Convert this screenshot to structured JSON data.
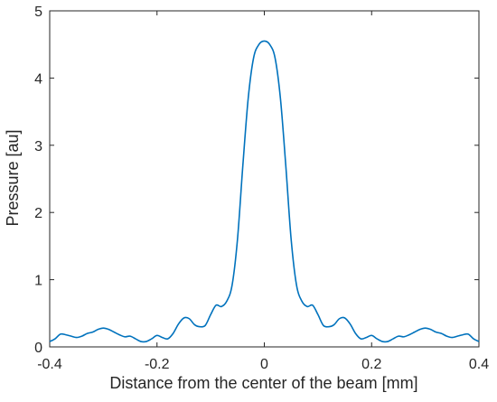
{
  "chart_data": {
    "type": "line",
    "title": "",
    "xlabel": "Distance from the center of the beam [mm]",
    "ylabel": "Pressure [au]",
    "xlim": [
      -0.4,
      0.4
    ],
    "ylim": [
      0,
      5
    ],
    "xticks": [
      -0.4,
      -0.2,
      0,
      0.2,
      0.4
    ],
    "xtick_labels": [
      "-0.4",
      "-0.2",
      "0",
      "0.2",
      "0.4"
    ],
    "yticks": [
      0,
      1,
      2,
      3,
      4,
      5
    ],
    "ytick_labels": [
      "0",
      "1",
      "2",
      "3",
      "4",
      "5"
    ],
    "grid": false,
    "box": true,
    "series": [
      {
        "color": "#0072BD",
        "x": [
          -0.4,
          -0.39,
          -0.38,
          -0.37,
          -0.36,
          -0.35,
          -0.34,
          -0.33,
          -0.32,
          -0.31,
          -0.3,
          -0.29,
          -0.28,
          -0.27,
          -0.26,
          -0.25,
          -0.24,
          -0.23,
          -0.22,
          -0.21,
          -0.2,
          -0.19,
          -0.18,
          -0.17,
          -0.16,
          -0.15,
          -0.14,
          -0.13,
          -0.12,
          -0.11,
          -0.1,
          -0.09,
          -0.08,
          -0.07,
          -0.06,
          -0.05,
          -0.04,
          -0.03,
          -0.02,
          -0.01,
          0,
          0.01,
          0.02,
          0.03,
          0.04,
          0.05,
          0.06,
          0.07,
          0.08,
          0.09,
          0.1,
          0.11,
          0.12,
          0.13,
          0.14,
          0.15,
          0.16,
          0.17,
          0.18,
          0.19,
          0.2,
          0.21,
          0.22,
          0.23,
          0.24,
          0.25,
          0.26,
          0.27,
          0.28,
          0.29,
          0.3,
          0.31,
          0.32,
          0.33,
          0.34,
          0.35,
          0.36,
          0.37,
          0.38,
          0.39,
          0.4
        ],
        "y": [
          0.08,
          0.12,
          0.19,
          0.18,
          0.16,
          0.14,
          0.16,
          0.2,
          0.22,
          0.26,
          0.28,
          0.26,
          0.22,
          0.18,
          0.15,
          0.16,
          0.12,
          0.08,
          0.08,
          0.12,
          0.17,
          0.14,
          0.12,
          0.2,
          0.34,
          0.43,
          0.42,
          0.33,
          0.3,
          0.32,
          0.48,
          0.62,
          0.6,
          0.68,
          0.92,
          1.6,
          2.7,
          3.7,
          4.3,
          4.5,
          4.55,
          4.5,
          4.3,
          3.7,
          2.7,
          1.6,
          0.92,
          0.68,
          0.6,
          0.62,
          0.48,
          0.32,
          0.3,
          0.33,
          0.42,
          0.43,
          0.34,
          0.2,
          0.12,
          0.14,
          0.17,
          0.12,
          0.08,
          0.08,
          0.12,
          0.16,
          0.15,
          0.18,
          0.22,
          0.26,
          0.28,
          0.26,
          0.22,
          0.2,
          0.16,
          0.14,
          0.16,
          0.18,
          0.19,
          0.12,
          0.08
        ]
      }
    ]
  }
}
